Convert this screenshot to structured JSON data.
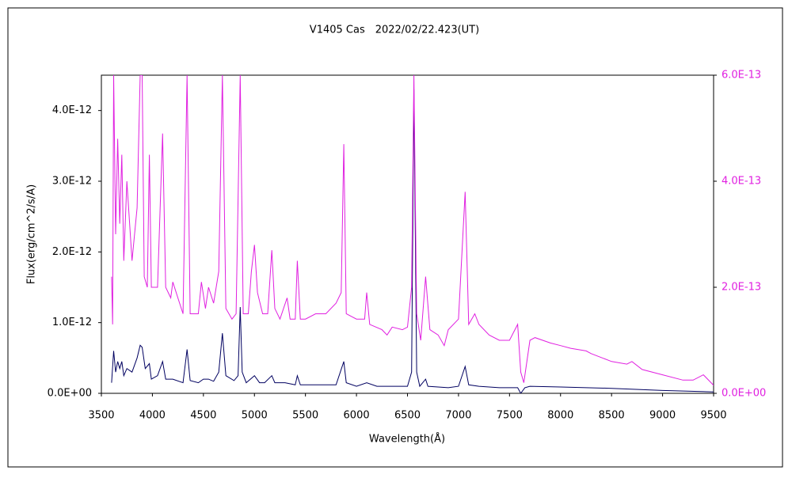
{
  "chart_data": {
    "type": "line",
    "title": "V1405 Cas　2022/02/22.423(UT)",
    "x_label": "Wavelength(Å)",
    "y_label": "Flux(erg/cm^2/s/A)",
    "xlim": [
      3500,
      9500
    ],
    "xticks": [
      3500,
      4000,
      4500,
      5000,
      5500,
      6000,
      6500,
      7000,
      7500,
      8000,
      8500,
      9000,
      9500
    ],
    "ylim": [
      0,
      4.5e-12
    ],
    "yticks": [
      {
        "value": 0,
        "label": "0.0E+00"
      },
      {
        "value": 1e-12,
        "label": "1.0E-12"
      },
      {
        "value": 2e-12,
        "label": "2.0E-12"
      },
      {
        "value": 3e-12,
        "label": "3.0E-12"
      },
      {
        "value": 4e-12,
        "label": "4.0E-12"
      }
    ],
    "y2lim": [
      0,
      6e-13
    ],
    "y2ticks": [
      {
        "value": 0,
        "label": "0.0E+00"
      },
      {
        "value": 2e-13,
        "label": "2.0E-13"
      },
      {
        "value": 4e-13,
        "label": "4.0E-13"
      },
      {
        "value": 6e-13,
        "label": "6.0E-13"
      }
    ],
    "y2_color": "#e020e0",
    "series": [
      {
        "color": "#000060",
        "x": [
          3600,
          3620,
          3640,
          3660,
          3680,
          3700,
          3720,
          3750,
          3800,
          3850,
          3880,
          3900,
          3930,
          3970,
          3990,
          4050,
          4100,
          4130,
          4200,
          4300,
          4340,
          4370,
          4450,
          4500,
          4550,
          4600,
          4650,
          4686,
          4720,
          4800,
          4840,
          4861,
          4880,
          4920,
          5000,
          5050,
          5100,
          5170,
          5200,
          5300,
          5400,
          5420,
          5450,
          5600,
          5700,
          5800,
          5876,
          5900,
          6000,
          6100,
          6200,
          6400,
          6500,
          6540,
          6563,
          6590,
          6620,
          6678,
          6700,
          6900,
          7000,
          7065,
          7100,
          7200,
          7400,
          7580,
          7610,
          7650,
          7700,
          8000,
          8500,
          9000,
          9500
        ],
        "values": [
          1.5e-13,
          6e-13,
          3e-13,
          4.5e-13,
          3.5e-13,
          4.5e-13,
          2.5e-13,
          3.5e-13,
          3e-13,
          5e-13,
          6.8e-13,
          6.5e-13,
          3.5e-13,
          4.2e-13,
          2e-13,
          2.5e-13,
          4.5e-13,
          2e-13,
          2e-13,
          1.5e-13,
          6.2e-13,
          1.8e-13,
          1.5e-13,
          2e-13,
          2e-13,
          1.7e-13,
          3e-13,
          8.5e-13,
          2.5e-13,
          1.8e-13,
          2.5e-13,
          1.22e-12,
          3e-13,
          1.5e-13,
          2.5e-13,
          1.5e-13,
          1.5e-13,
          2.5e-13,
          1.5e-13,
          1.5e-13,
          1.2e-13,
          2.5e-13,
          1.2e-13,
          1.2e-13,
          1.2e-13,
          1.2e-13,
          4.5e-13,
          1.5e-13,
          1e-13,
          1.5e-13,
          1e-13,
          1e-13,
          1e-13,
          3e-13,
          4.3e-12,
          3e-13,
          1e-13,
          2e-13,
          1e-13,
          8e-14,
          1e-13,
          3.8e-13,
          1.2e-13,
          1e-13,
          8e-14,
          8e-14,
          0,
          8e-14,
          1e-13,
          9e-14,
          7e-14,
          4e-14,
          2e-14
        ]
      },
      {
        "color": "#e020e0",
        "axis": "y2",
        "x": [
          3600,
          3610,
          3620,
          3640,
          3660,
          3680,
          3700,
          3720,
          3750,
          3800,
          3850,
          3880,
          3900,
          3920,
          3950,
          3970,
          3990,
          4050,
          4100,
          4130,
          4180,
          4200,
          4250,
          4300,
          4340,
          4370,
          4450,
          4480,
          4520,
          4550,
          4600,
          4650,
          4686,
          4720,
          4780,
          4820,
          4861,
          4890,
          4940,
          4970,
          5000,
          5030,
          5080,
          5130,
          5170,
          5200,
          5250,
          5320,
          5350,
          5400,
          5420,
          5450,
          5500,
          5600,
          5700,
          5800,
          5850,
          5876,
          5900,
          6000,
          6080,
          6100,
          6130,
          6250,
          6300,
          6350,
          6450,
          6500,
          6540,
          6563,
          6590,
          6630,
          6678,
          6720,
          6800,
          6860,
          6900,
          7000,
          7065,
          7100,
          7160,
          7200,
          7300,
          7400,
          7500,
          7580,
          7610,
          7640,
          7700,
          7750,
          7900,
          8000,
          8100,
          8250,
          8300,
          8500,
          8650,
          8700,
          8800,
          9000,
          9200,
          9300,
          9400,
          9500
        ],
        "values": [
          2.2e-13,
          1.3e-13,
          6e-13,
          3e-13,
          4.8e-13,
          3.2e-13,
          4.5e-13,
          2.5e-13,
          4e-13,
          2.5e-13,
          3.5e-13,
          6e-13,
          6e-13,
          2.2e-13,
          2e-13,
          4.5e-13,
          2e-13,
          2e-13,
          4.9e-13,
          2e-13,
          1.8e-13,
          2.1e-13,
          1.8e-13,
          1.5e-13,
          6e-13,
          1.5e-13,
          1.5e-13,
          2.1e-13,
          1.6e-13,
          2e-13,
          1.7e-13,
          2.3e-13,
          6e-13,
          1.6e-13,
          1.4e-13,
          1.5e-13,
          6e-13,
          1.5e-13,
          1.5e-13,
          2.3e-13,
          2.8e-13,
          1.9e-13,
          1.5e-13,
          1.5e-13,
          2.7e-13,
          1.6e-13,
          1.4e-13,
          1.8e-13,
          1.4e-13,
          1.4e-13,
          2.5e-13,
          1.4e-13,
          1.4e-13,
          1.5e-13,
          1.5e-13,
          1.7e-13,
          1.9e-13,
          4.7e-13,
          1.5e-13,
          1.4e-13,
          1.4e-13,
          1.9e-13,
          1.3e-13,
          1.2e-13,
          1.1e-13,
          1.25e-13,
          1.2e-13,
          1.25e-13,
          2e-13,
          6e-13,
          1.5e-13,
          1e-13,
          2.2e-13,
          1.2e-13,
          1.1e-13,
          9e-14,
          1.2e-13,
          1.4e-13,
          3.8e-13,
          1.3e-13,
          1.5e-13,
          1.3e-13,
          1.1e-13,
          1e-13,
          1e-13,
          1.3e-13,
          4e-14,
          2e-14,
          1e-13,
          1.05e-13,
          9.5e-14,
          9e-14,
          8.5e-14,
          8e-14,
          7.5e-14,
          6e-14,
          5.5e-14,
          6e-14,
          4.5e-14,
          3.5e-14,
          2.5e-14,
          2.5e-14,
          3.5e-14,
          1.5e-14
        ]
      }
    ]
  }
}
